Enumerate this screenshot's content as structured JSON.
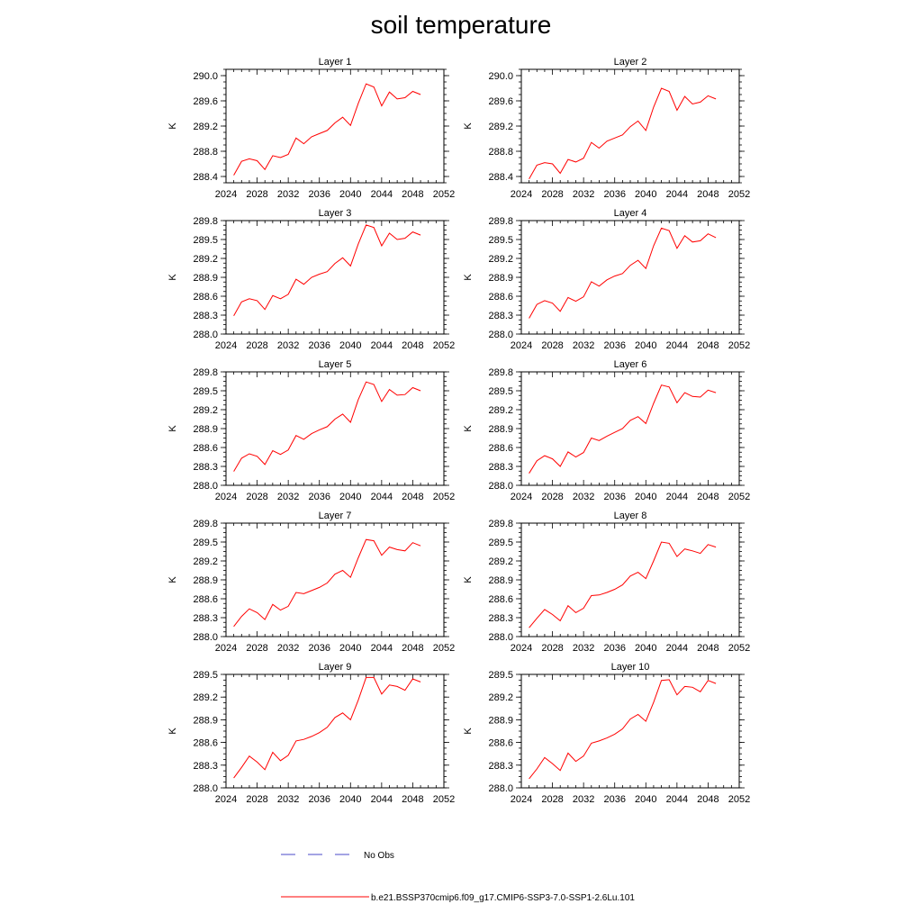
{
  "figure": {
    "title": "soil temperature"
  },
  "legend": {
    "entries": [
      {
        "label": "No Obs",
        "color": "#4a4ac8",
        "style": "dashed"
      },
      {
        "label": "b.e21.BSSP370cmip6.f09_g17.CMIP6-SSP3-7.0-SSP1-2.6Lu.101",
        "color": "#ff0000",
        "style": "solid"
      }
    ]
  },
  "colors": {
    "series": "#ff0000",
    "axes": "#000000",
    "obs": "#4a4ac8"
  },
  "chart_data": [
    {
      "type": "line",
      "title": "Layer 1",
      "ylabel": "K",
      "xlabel": "",
      "xlim": [
        2024,
        2052
      ],
      "xticks": [
        "2024",
        "2028",
        "2032",
        "2036",
        "2040",
        "2044",
        "2048",
        "2052"
      ],
      "ylim": [
        288.3,
        290.1
      ],
      "yticks": [
        "288.4",
        "288.8",
        "289.2",
        "289.6",
        "290.0"
      ],
      "x": [
        2025,
        2026,
        2027,
        2028,
        2029,
        2030,
        2031,
        2032,
        2033,
        2034,
        2035,
        2036,
        2037,
        2038,
        2039,
        2040,
        2041,
        2042,
        2043,
        2044,
        2045,
        2046,
        2047,
        2048,
        2049
      ],
      "series": [
        {
          "values": [
            288.42,
            288.64,
            288.68,
            288.65,
            288.51,
            288.73,
            288.7,
            288.75,
            289.01,
            288.92,
            289.03,
            289.08,
            289.13,
            289.25,
            289.34,
            289.21,
            289.56,
            289.87,
            289.82,
            289.52,
            289.74,
            289.63,
            289.65,
            289.75,
            289.7
          ]
        }
      ]
    },
    {
      "type": "line",
      "title": "Layer 2",
      "ylabel": "K",
      "xlabel": "",
      "xlim": [
        2024,
        2052
      ],
      "xticks": [
        "2024",
        "2028",
        "2032",
        "2036",
        "2040",
        "2044",
        "2048",
        "2052"
      ],
      "ylim": [
        288.3,
        290.1
      ],
      "yticks": [
        "288.4",
        "288.8",
        "289.2",
        "289.6",
        "290.0"
      ],
      "x": [
        2025,
        2026,
        2027,
        2028,
        2029,
        2030,
        2031,
        2032,
        2033,
        2034,
        2035,
        2036,
        2037,
        2038,
        2039,
        2040,
        2041,
        2042,
        2043,
        2044,
        2045,
        2046,
        2047,
        2048,
        2049
      ],
      "series": [
        {
          "values": [
            288.36,
            288.58,
            288.62,
            288.6,
            288.45,
            288.67,
            288.63,
            288.69,
            288.94,
            288.85,
            288.96,
            289.01,
            289.06,
            289.19,
            289.28,
            289.13,
            289.5,
            289.8,
            289.75,
            289.45,
            289.67,
            289.55,
            289.58,
            289.68,
            289.63
          ]
        }
      ]
    },
    {
      "type": "line",
      "title": "Layer 3",
      "ylabel": "K",
      "xlabel": "",
      "xlim": [
        2024,
        2052
      ],
      "xticks": [
        "2024",
        "2028",
        "2032",
        "2036",
        "2040",
        "2044",
        "2048",
        "2052"
      ],
      "ylim": [
        288.0,
        289.8
      ],
      "yticks": [
        "288.0",
        "288.3",
        "288.6",
        "288.9",
        "289.2",
        "289.5",
        "289.8"
      ],
      "x": [
        2025,
        2026,
        2027,
        2028,
        2029,
        2030,
        2031,
        2032,
        2033,
        2034,
        2035,
        2036,
        2037,
        2038,
        2039,
        2040,
        2041,
        2042,
        2043,
        2044,
        2045,
        2046,
        2047,
        2048,
        2049
      ],
      "series": [
        {
          "values": [
            288.29,
            288.51,
            288.56,
            288.53,
            288.39,
            288.61,
            288.56,
            288.63,
            288.87,
            288.79,
            288.9,
            288.95,
            288.99,
            289.12,
            289.21,
            289.08,
            289.43,
            289.73,
            289.69,
            289.4,
            289.6,
            289.5,
            289.52,
            289.62,
            289.57
          ]
        }
      ]
    },
    {
      "type": "line",
      "title": "Layer 4",
      "ylabel": "K",
      "xlabel": "",
      "xlim": [
        2024,
        2052
      ],
      "xticks": [
        "2024",
        "2028",
        "2032",
        "2036",
        "2040",
        "2044",
        "2048",
        "2052"
      ],
      "ylim": [
        288.0,
        289.8
      ],
      "yticks": [
        "288.0",
        "288.3",
        "288.6",
        "288.9",
        "289.2",
        "289.5",
        "289.8"
      ],
      "x": [
        2025,
        2026,
        2027,
        2028,
        2029,
        2030,
        2031,
        2032,
        2033,
        2034,
        2035,
        2036,
        2037,
        2038,
        2039,
        2040,
        2041,
        2042,
        2043,
        2044,
        2045,
        2046,
        2047,
        2048,
        2049
      ],
      "series": [
        {
          "values": [
            288.25,
            288.47,
            288.53,
            288.49,
            288.36,
            288.58,
            288.52,
            288.59,
            288.83,
            288.76,
            288.86,
            288.92,
            288.96,
            289.09,
            289.17,
            289.04,
            289.4,
            289.68,
            289.64,
            289.36,
            289.56,
            289.46,
            289.48,
            289.59,
            289.53
          ]
        }
      ]
    },
    {
      "type": "line",
      "title": "Layer 5",
      "ylabel": "K",
      "xlabel": "",
      "xlim": [
        2024,
        2052
      ],
      "xticks": [
        "2024",
        "2028",
        "2032",
        "2036",
        "2040",
        "2044",
        "2048",
        "2052"
      ],
      "ylim": [
        288.0,
        289.8
      ],
      "yticks": [
        "288.0",
        "288.3",
        "288.6",
        "288.9",
        "289.2",
        "289.5",
        "289.8"
      ],
      "x": [
        2025,
        2026,
        2027,
        2028,
        2029,
        2030,
        2031,
        2032,
        2033,
        2034,
        2035,
        2036,
        2037,
        2038,
        2039,
        2040,
        2041,
        2042,
        2043,
        2044,
        2045,
        2046,
        2047,
        2048,
        2049
      ],
      "series": [
        {
          "values": [
            288.22,
            288.43,
            288.5,
            288.46,
            288.33,
            288.55,
            288.49,
            288.56,
            288.79,
            288.73,
            288.82,
            288.88,
            288.93,
            289.05,
            289.13,
            289.0,
            289.36,
            289.64,
            289.6,
            289.33,
            289.52,
            289.43,
            289.44,
            289.55,
            289.5
          ]
        }
      ]
    },
    {
      "type": "line",
      "title": "Layer 6",
      "ylabel": "K",
      "xlabel": "",
      "xlim": [
        2024,
        2052
      ],
      "xticks": [
        "2024",
        "2028",
        "2032",
        "2036",
        "2040",
        "2044",
        "2048",
        "2052"
      ],
      "ylim": [
        288.0,
        289.8
      ],
      "yticks": [
        "288.0",
        "288.3",
        "288.6",
        "288.9",
        "289.2",
        "289.5",
        "289.8"
      ],
      "x": [
        2025,
        2026,
        2027,
        2028,
        2029,
        2030,
        2031,
        2032,
        2033,
        2034,
        2035,
        2036,
        2037,
        2038,
        2039,
        2040,
        2041,
        2042,
        2043,
        2044,
        2045,
        2046,
        2047,
        2048,
        2049
      ],
      "series": [
        {
          "values": [
            288.19,
            288.39,
            288.47,
            288.42,
            288.3,
            288.53,
            288.45,
            288.52,
            288.75,
            288.71,
            288.78,
            288.84,
            288.9,
            289.03,
            289.09,
            288.98,
            289.3,
            289.59,
            289.56,
            289.31,
            289.47,
            289.41,
            289.4,
            289.51,
            289.47
          ]
        }
      ]
    },
    {
      "type": "line",
      "title": "Layer 7",
      "ylabel": "K",
      "xlabel": "",
      "xlim": [
        2024,
        2052
      ],
      "xticks": [
        "2024",
        "2028",
        "2032",
        "2036",
        "2040",
        "2044",
        "2048",
        "2052"
      ],
      "ylim": [
        288.0,
        289.8
      ],
      "yticks": [
        "288.0",
        "288.3",
        "288.6",
        "288.9",
        "289.2",
        "289.5",
        "289.8"
      ],
      "x": [
        2025,
        2026,
        2027,
        2028,
        2029,
        2030,
        2031,
        2032,
        2033,
        2034,
        2035,
        2036,
        2037,
        2038,
        2039,
        2040,
        2041,
        2042,
        2043,
        2044,
        2045,
        2046,
        2047,
        2048,
        2049
      ],
      "series": [
        {
          "values": [
            288.16,
            288.32,
            288.44,
            288.38,
            288.27,
            288.51,
            288.42,
            288.48,
            288.7,
            288.68,
            288.73,
            288.78,
            288.85,
            288.99,
            289.05,
            288.94,
            289.25,
            289.54,
            289.52,
            289.29,
            289.42,
            289.38,
            289.36,
            289.49,
            289.44
          ]
        }
      ]
    },
    {
      "type": "line",
      "title": "Layer 8",
      "ylabel": "K",
      "xlabel": "",
      "xlim": [
        2024,
        2052
      ],
      "xticks": [
        "2024",
        "2028",
        "2032",
        "2036",
        "2040",
        "2044",
        "2048",
        "2052"
      ],
      "ylim": [
        288.0,
        289.8
      ],
      "yticks": [
        "288.0",
        "288.3",
        "288.6",
        "288.9",
        "289.2",
        "289.5",
        "289.8"
      ],
      "x": [
        2025,
        2026,
        2027,
        2028,
        2029,
        2030,
        2031,
        2032,
        2033,
        2034,
        2035,
        2036,
        2037,
        2038,
        2039,
        2040,
        2041,
        2042,
        2043,
        2044,
        2045,
        2046,
        2047,
        2048,
        2049
      ],
      "series": [
        {
          "values": [
            288.14,
            288.29,
            288.43,
            288.35,
            288.25,
            288.49,
            288.38,
            288.45,
            288.65,
            288.66,
            288.7,
            288.75,
            288.82,
            288.96,
            289.02,
            288.92,
            289.2,
            289.5,
            289.48,
            289.27,
            289.39,
            289.36,
            289.32,
            289.46,
            289.42
          ]
        }
      ]
    },
    {
      "type": "line",
      "title": "Layer 9",
      "ylabel": "K",
      "xlabel": "",
      "xlim": [
        2024,
        2052
      ],
      "xticks": [
        "2024",
        "2028",
        "2032",
        "2036",
        "2040",
        "2044",
        "2048",
        "2052"
      ],
      "ylim": [
        288.0,
        289.5
      ],
      "yticks": [
        "288.0",
        "288.3",
        "288.6",
        "288.9",
        "289.2",
        "289.5"
      ],
      "x": [
        2025,
        2026,
        2027,
        2028,
        2029,
        2030,
        2031,
        2032,
        2033,
        2034,
        2035,
        2036,
        2037,
        2038,
        2039,
        2040,
        2041,
        2042,
        2043,
        2044,
        2045,
        2046,
        2047,
        2048,
        2049
      ],
      "series": [
        {
          "values": [
            288.13,
            288.27,
            288.42,
            288.34,
            288.24,
            288.47,
            288.36,
            288.43,
            288.62,
            288.64,
            288.68,
            288.73,
            288.8,
            288.93,
            288.99,
            288.9,
            289.16,
            289.46,
            289.46,
            289.24,
            289.36,
            289.34,
            289.29,
            289.44,
            289.4
          ]
        }
      ]
    },
    {
      "type": "line",
      "title": "Layer 10",
      "ylabel": "K",
      "xlabel": "",
      "xlim": [
        2024,
        2052
      ],
      "xticks": [
        "2024",
        "2028",
        "2032",
        "2036",
        "2040",
        "2044",
        "2048",
        "2052"
      ],
      "ylim": [
        288.0,
        289.5
      ],
      "yticks": [
        "288.0",
        "288.3",
        "288.6",
        "288.9",
        "289.2",
        "289.5"
      ],
      "x": [
        2025,
        2026,
        2027,
        2028,
        2029,
        2030,
        2031,
        2032,
        2033,
        2034,
        2035,
        2036,
        2037,
        2038,
        2039,
        2040,
        2041,
        2042,
        2043,
        2044,
        2045,
        2046,
        2047,
        2048,
        2049
      ],
      "series": [
        {
          "values": [
            288.12,
            288.25,
            288.4,
            288.32,
            288.23,
            288.46,
            288.35,
            288.42,
            288.59,
            288.62,
            288.66,
            288.71,
            288.78,
            288.91,
            288.97,
            288.88,
            289.13,
            289.42,
            289.43,
            289.23,
            289.34,
            289.33,
            289.27,
            289.42,
            289.38
          ]
        }
      ]
    }
  ]
}
